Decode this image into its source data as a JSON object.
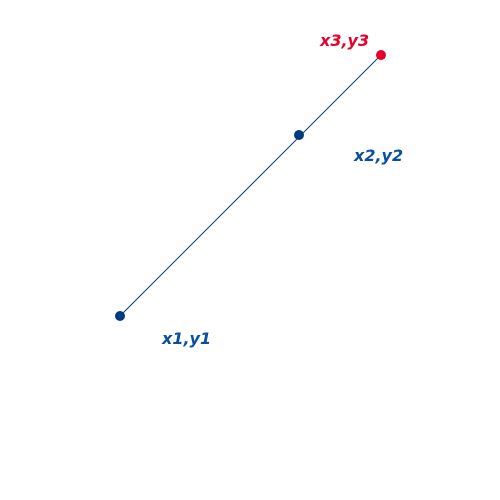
{
  "points": [
    {
      "id": "p1",
      "label": "x1,y1",
      "color": "#003a80",
      "label_color": "#0a4ea0"
    },
    {
      "id": "p2",
      "label": "x2,y2",
      "color": "#003a80",
      "label_color": "#0a4ea0"
    },
    {
      "id": "p3",
      "label": "x3,y3",
      "color": "#e8002a",
      "label_color": "#e8002a"
    }
  ],
  "line_color": "#0a3a8a"
}
